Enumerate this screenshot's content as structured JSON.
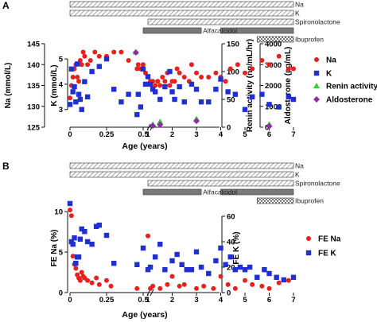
{
  "figure": {
    "panels": [
      {
        "panel_label": "A",
        "treatment_bars": [
          {
            "label": "Na",
            "start": 0,
            "end": 7,
            "pattern": "hatch"
          },
          {
            "label": "K",
            "start": 0,
            "end": 7,
            "pattern": "hatch"
          },
          {
            "label": "Spironolactone",
            "start": 1,
            "end": 7,
            "pattern": "hatch"
          },
          {
            "label": "Alfacalcidol",
            "start": 0.5,
            "end": 3.2,
            "pattern": "solid",
            "color": "#7a7a7a"
          },
          {
            "label": "Alfacalcidol",
            "start": 4,
            "end": 7,
            "pattern": "solid",
            "color": "#7a7a7a"
          },
          {
            "label": "Ibuprofen",
            "start": 5.5,
            "end": 7,
            "pattern": "checker"
          }
        ],
        "chart_data": {
          "type": "scatter",
          "xlabel": "Age (years)",
          "x_ticks": [
            "0",
            "0.25",
            "0.5",
            "1",
            "2",
            "3",
            "4",
            "5",
            "6",
            "7"
          ],
          "axes": [
            {
              "side": "left-outer",
              "label": "Na (mmol/L)",
              "range": [
                125,
                145
              ],
              "ticks": [
                125,
                130,
                135,
                140,
                145
              ]
            },
            {
              "side": "left-inner",
              "label": "K (mmol/L)",
              "range": [
                2.3,
                5.6
              ],
              "ticks": [
                3,
                4,
                5
              ]
            },
            {
              "side": "right-inner",
              "label": "Renin activity (ng/mL/hr)",
              "range": [
                0,
                150
              ],
              "ticks": [
                0,
                50,
                100,
                150
              ]
            },
            {
              "side": "right-outer",
              "label": "Aldosterone (pg/mL)",
              "range": [
                0,
                4000
              ],
              "ticks": [
                0,
                1000,
                2000,
                3000,
                4000
              ]
            }
          ],
          "legend": {
            "position": "right"
          },
          "series": [
            {
              "name": "Na",
              "marker": "circle",
              "color": "#e8201e",
              "axis": "Na (mmol/L)",
              "x": [
                0,
                0.01,
                0.02,
                0.03,
                0.04,
                0.05,
                0.06,
                0.07,
                0.08,
                0.09,
                0.1,
                0.12,
                0.14,
                0.17,
                0.2,
                0.25,
                0.3,
                0.35,
                0.4,
                0.55,
                0.6,
                0.7,
                0.8,
                0.9,
                1,
                1.1,
                1.2,
                1.3,
                1.4,
                1.5,
                1.6,
                1.7,
                1.8,
                1.9,
                2,
                2.1,
                2.2,
                2.3,
                2.5,
                2.7,
                2.8,
                3,
                3.2,
                3.5,
                3.8,
                4,
                4.2,
                4.4,
                4.7,
                5,
                5.3,
                5.7,
                6,
                6.4,
                6.8,
                7
              ],
              "y": [
                132,
                135,
                137,
                139,
                140,
                137,
                136,
                141,
                140,
                143,
                142,
                140,
                141,
                143,
                142,
                142,
                143,
                143,
                141,
                139,
                140,
                139,
                140,
                138,
                137,
                136,
                136,
                135,
                136,
                135,
                137,
                136,
                138,
                135,
                136,
                136,
                139,
                138,
                137,
                136,
                140,
                138,
                137,
                137,
                138,
                137,
                136,
                139,
                140,
                138,
                139,
                141,
                140,
                142,
                139,
                139
              ]
            },
            {
              "name": "K",
              "marker": "square",
              "color": "#1f2fd0",
              "axis": "K (mmol/L)",
              "x": [
                0,
                0.01,
                0.02,
                0.03,
                0.04,
                0.05,
                0.06,
                0.07,
                0.08,
                0.1,
                0.12,
                0.15,
                0.2,
                0.25,
                0.3,
                0.35,
                0.4,
                0.55,
                0.6,
                0.7,
                0.8,
                0.9,
                1,
                1.1,
                1.2,
                1.3,
                1.5,
                1.7,
                1.9,
                2,
                2.1,
                2.3,
                2.5,
                2.8,
                3,
                3.2,
                3.5,
                3.8,
                4,
                4.3,
                4.6,
                5,
                5.3,
                5.7,
                6,
                6.4,
                6.8,
                7
              ],
              "y": [
                3.2,
                4.6,
                3.7,
                3.9,
                3.3,
                4.8,
                3.6,
                3.4,
                3.0,
                4.1,
                3.5,
                4.5,
                4.7,
                5.0,
                3.8,
                3.3,
                3.6,
                2.8,
                3.6,
                3.1,
                4.6,
                4.0,
                4.3,
                4.0,
                3.8,
                3.7,
                3.4,
                3.9,
                4.5,
                3.7,
                3.4,
                3.9,
                3.3,
                4.0,
                3.8,
                3.3,
                3.3,
                3.8,
                4.2,
                3.7,
                3.6,
                3.0,
                3.5,
                3.6,
                3.2,
                3.1,
                3.5,
                3.4
              ]
            },
            {
              "name": "Renin activity",
              "marker": "triangle",
              "color": "#3fc93a",
              "axis": "Renin activity (ng/mL/hr)",
              "x": [
                0.45,
                1.2,
                1.5,
                3,
                6
              ],
              "y": [
                135,
                5,
                10,
                15,
                5
              ]
            },
            {
              "name": "Aldosterone",
              "marker": "diamond",
              "color": "#8b2ea0",
              "axis": "Aldosterone (pg/mL)",
              "x": [
                0.45,
                1.2,
                1.5,
                3,
                6
              ],
              "y": [
                3580,
                70,
                120,
                300,
                50
              ]
            }
          ]
        }
      },
      {
        "panel_label": "B",
        "treatment_bars": [
          {
            "label": "Na",
            "start": 0,
            "end": 7,
            "pattern": "hatch"
          },
          {
            "label": "K",
            "start": 0,
            "end": 7,
            "pattern": "hatch"
          },
          {
            "label": "Spironolactone",
            "start": 1,
            "end": 7,
            "pattern": "hatch"
          },
          {
            "label": "Alfacalcidol",
            "start": 0.5,
            "end": 3.2,
            "pattern": "solid",
            "color": "#7a7a7a"
          },
          {
            "label": "Alfacalcidol",
            "start": 4,
            "end": 7,
            "pattern": "solid",
            "color": "#7a7a7a"
          },
          {
            "label": "Ibuprofen",
            "start": 5.5,
            "end": 7,
            "pattern": "checker"
          }
        ],
        "chart_data": {
          "type": "scatter",
          "xlabel": "Age (years)",
          "x_ticks": [
            "0",
            "0.25",
            "0.5",
            "1",
            "2",
            "3",
            "4",
            "5",
            "6",
            "7"
          ],
          "axes": [
            {
              "side": "left",
              "label": "FE Na (%)",
              "range": [
                0,
                11
              ],
              "ticks": [
                0,
                5,
                10
              ]
            },
            {
              "side": "right",
              "label": "FE K (%)",
              "range": [
                0,
                70
              ],
              "ticks": [
                0,
                20,
                40,
                60
              ]
            }
          ],
          "legend": {
            "position": "right"
          },
          "series": [
            {
              "name": "FE Na",
              "marker": "circle",
              "color": "#e8201e",
              "axis": "FE Na (%)",
              "x": [
                0,
                0.01,
                0.02,
                0.03,
                0.04,
                0.05,
                0.06,
                0.07,
                0.08,
                0.09,
                0.1,
                0.12,
                0.15,
                0.18,
                0.2,
                0.25,
                0.28,
                0.55,
                1,
                1.1,
                1.2,
                1.5,
                1.8,
                2,
                2.3,
                2.5,
                3,
                3.3,
                3.7,
                4,
                4.3,
                4.6,
                5,
                5.3,
                5.7,
                6,
                6.4,
                6.8
              ],
              "y": [
                10.2,
                9.5,
                4.5,
                3.5,
                3.0,
                2.2,
                1.8,
                1.5,
                2.5,
                2.0,
                1.8,
                1.5,
                1.2,
                1.8,
                1.0,
                1.5,
                0.8,
                0.5,
                7.0,
                0.5,
                0.8,
                0.5,
                1.0,
                2.0,
                0.8,
                1.0,
                0.5,
                0.8,
                0.5,
                2.0,
                1.0,
                0.5,
                1.5,
                1.0,
                0.8,
                0.5,
                1.2,
                1.5
              ]
            },
            {
              "name": "FE K",
              "marker": "square",
              "color": "#1f2fd0",
              "axis": "FE K (%)",
              "x": [
                0,
                0.01,
                0.02,
                0.03,
                0.04,
                0.05,
                0.06,
                0.07,
                0.08,
                0.1,
                0.12,
                0.15,
                0.18,
                0.2,
                0.25,
                0.3,
                0.5,
                0.55,
                1,
                1.1,
                1.3,
                1.5,
                1.7,
                2,
                2.2,
                2.4,
                2.6,
                2.8,
                3,
                3.2,
                3.5,
                3.8,
                4,
                4.2,
                4.4,
                4.6,
                4.8,
                5,
                5.2,
                5.5,
                5.8,
                6,
                6.3,
                6.6,
                7
              ],
              "y": [
                70,
                40,
                38,
                43,
                23,
                28,
                28,
                42,
                50,
                48,
                40,
                38,
                52,
                53,
                45,
                23,
                35,
                22,
                18,
                20,
                28,
                38,
                18,
                25,
                30,
                22,
                18,
                18,
                32,
                20,
                15,
                25,
                35,
                22,
                28,
                18,
                20,
                18,
                20,
                12,
                18,
                15,
                12,
                10,
                12
              ]
            }
          ]
        }
      }
    ]
  }
}
